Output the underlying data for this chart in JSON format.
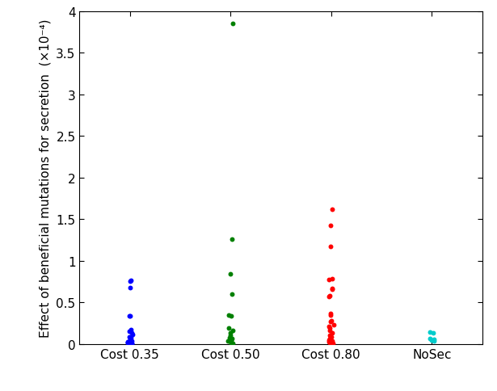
{
  "categories": [
    "Cost 0.35",
    "Cost 0.50",
    "Cost 0.80",
    "NoSec"
  ],
  "x_positions": [
    1,
    2,
    3,
    4
  ],
  "colors": [
    "#0000ff",
    "#008000",
    "#ff0000",
    "#00cccc"
  ],
  "ylabel": "Effect of beneficial mutations for secretion  (×10⁻⁴)",
  "ylim": [
    0,
    4.0
  ],
  "ytick_values": [
    0,
    0.5,
    1.0,
    1.5,
    2.0,
    2.5,
    3.0,
    3.5,
    4.0
  ],
  "ytick_labels": [
    "0",
    "0.5",
    "1",
    "1.5",
    "2",
    "2.5",
    "3",
    "3.5",
    "4"
  ],
  "data": {
    "Cost 0.35": [
      0.755,
      0.76,
      0.675,
      0.34,
      0.335,
      0.175,
      0.155,
      0.13,
      0.11,
      0.09,
      0.075,
      0.06,
      0.05,
      0.04,
      0.03,
      0.02,
      0.015,
      0.01,
      0.005,
      0.003
    ],
    "Cost 0.50": [
      3.85,
      1.26,
      0.845,
      0.6,
      0.345,
      0.335,
      0.19,
      0.165,
      0.135,
      0.1,
      0.08,
      0.065,
      0.055,
      0.045,
      0.035,
      0.025,
      0.015,
      0.01,
      0.005
    ],
    "Cost 0.80": [
      1.62,
      1.42,
      1.17,
      0.785,
      0.77,
      0.665,
      0.66,
      0.58,
      0.57,
      0.37,
      0.345,
      0.28,
      0.265,
      0.235,
      0.215,
      0.195,
      0.165,
      0.135,
      0.1,
      0.085,
      0.065,
      0.055,
      0.045,
      0.035,
      0.025,
      0.015,
      0.01,
      0.005
    ],
    "NoSec": [
      0.145,
      0.13,
      0.065,
      0.055,
      0.045,
      0.035
    ]
  },
  "jitter_scale": 0.025,
  "marker_size": 18,
  "background_color": "#ffffff",
  "figsize": [
    6.15,
    4.85
  ],
  "dpi": 100
}
